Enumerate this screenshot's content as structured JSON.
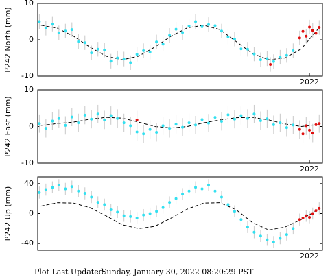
{
  "chart_data": [
    {
      "type": "scatter",
      "ylabel": "P242 North (mm)",
      "ylim": [
        -10,
        10
      ],
      "yticks": [
        -10,
        0,
        10
      ],
      "xlim": [
        2020.33,
        2022.08
      ],
      "xticks": [
        2022
      ],
      "series": [
        {
          "style": "dots",
          "color": "#33e0f0",
          "error_color": "#c8c8c8",
          "error": 2,
          "x": [
            2020.34,
            2020.38,
            2020.42,
            2020.46,
            2020.5,
            2020.54,
            2020.58,
            2020.62,
            2020.66,
            2020.7,
            2020.74,
            2020.78,
            2020.82,
            2020.86,
            2020.9,
            2020.94,
            2020.98,
            2021.02,
            2021.06,
            2021.1,
            2021.14,
            2021.18,
            2021.22,
            2021.26,
            2021.3,
            2021.34,
            2021.38,
            2021.42,
            2021.46,
            2021.5,
            2021.54,
            2021.58,
            2021.62,
            2021.66,
            2021.7,
            2021.74,
            2021.78,
            2021.82,
            2021.86,
            2021.9
          ],
          "values": [
            5.0,
            3.2,
            4.3,
            1.9,
            2.4,
            2.8,
            -0.5,
            -0.8,
            -3.6,
            -2.6,
            -2.8,
            -5.9,
            -5.0,
            -5.3,
            -6.3,
            -4.0,
            -3.0,
            -3.4,
            -0.6,
            -1.2,
            1.2,
            2.9,
            2.0,
            3.8,
            5.0,
            3.6,
            4.2,
            3.9,
            2.4,
            0.8,
            0.2,
            -2.5,
            -2.6,
            -3.9,
            -5.5,
            -5.2,
            -6.0,
            -4.8,
            -4.3,
            -3.0
          ]
        },
        {
          "style": "dots",
          "color": "#e01010",
          "error_color": "#c8c8c8",
          "error": 2,
          "x": [
            2021.76,
            2021.94,
            2021.96,
            2021.98,
            2022.0,
            2022.02,
            2022.04,
            2022.06
          ],
          "values": [
            -6.8,
            0.5,
            2.3,
            1.0,
            3.5,
            2.6,
            1.8,
            3.4
          ]
        },
        {
          "style": "dashed",
          "color": "#000000",
          "x": [
            2020.35,
            2020.45,
            2020.55,
            2020.65,
            2020.75,
            2020.85,
            2020.95,
            2021.05,
            2021.15,
            2021.25,
            2021.35,
            2021.45,
            2021.55,
            2021.65,
            2021.75,
            2021.85,
            2021.95,
            2022.05
          ],
          "values": [
            4,
            3.2,
            1,
            -2,
            -4.5,
            -5.5,
            -4.5,
            -2,
            1,
            3.3,
            4,
            2.8,
            -0.5,
            -3.8,
            -5.5,
            -5,
            -2.5,
            2.8
          ]
        }
      ]
    },
    {
      "type": "scatter",
      "ylabel": "P242 East (mm)",
      "ylim": [
        -10,
        10
      ],
      "yticks": [
        -10,
        0,
        10
      ],
      "xlim": [
        2020.33,
        2022.08
      ],
      "xticks": [
        2022
      ],
      "series": [
        {
          "style": "dots",
          "color": "#33e0f0",
          "error_color": "#c8c8c8",
          "error": 2.5,
          "x": [
            2020.34,
            2020.38,
            2020.42,
            2020.46,
            2020.5,
            2020.54,
            2020.58,
            2020.62,
            2020.66,
            2020.7,
            2020.74,
            2020.78,
            2020.82,
            2020.86,
            2020.9,
            2020.94,
            2020.98,
            2021.02,
            2021.06,
            2021.1,
            2021.14,
            2021.18,
            2021.22,
            2021.26,
            2021.3,
            2021.34,
            2021.38,
            2021.42,
            2021.46,
            2021.5,
            2021.54,
            2021.58,
            2021.62,
            2021.66,
            2021.7,
            2021.74,
            2021.78,
            2021.82,
            2021.86,
            2021.9
          ],
          "values": [
            0.8,
            -0.5,
            1.5,
            2.2,
            0.3,
            2.6,
            1.0,
            3.1,
            2.0,
            3.4,
            1.8,
            3.0,
            2.2,
            1.0,
            0.2,
            -1.5,
            -2.0,
            -0.8,
            -1.6,
            0.2,
            -0.5,
            0.6,
            -0.2,
            1.0,
            0.4,
            1.9,
            0.9,
            2.5,
            1.4,
            3.2,
            2.0,
            3.0,
            2.2,
            3.4,
            1.6,
            2.1,
            0.5,
            1.0,
            -0.3,
            0.4
          ]
        },
        {
          "style": "dots",
          "color": "#e01010",
          "error_color": "#c8c8c8",
          "error": 2.5,
          "x": [
            2020.94,
            2021.94,
            2021.96,
            2021.98,
            2022.0,
            2022.02,
            2022.04,
            2022.06
          ],
          "values": [
            1.8,
            -0.8,
            -2.0,
            0.2,
            -1.0,
            -1.8,
            0.5,
            0.8
          ]
        },
        {
          "style": "dashed",
          "color": "#000000",
          "x": [
            2020.35,
            2020.45,
            2020.55,
            2020.65,
            2020.75,
            2020.85,
            2020.95,
            2021.05,
            2021.15,
            2021.25,
            2021.35,
            2021.45,
            2021.55,
            2021.65,
            2021.75,
            2021.85,
            2021.95,
            2022.05
          ],
          "values": [
            0.3,
            0.8,
            1.2,
            2.0,
            2.5,
            2.3,
            1.2,
            0.0,
            -0.4,
            0.0,
            1.0,
            1.8,
            2.4,
            2.5,
            1.8,
            0.7,
            0.0,
            0.5
          ]
        }
      ]
    },
    {
      "type": "scatter",
      "ylabel": "P242 Up (mm)",
      "ylim": [
        -49,
        49
      ],
      "yticks": [
        -40,
        0,
        40
      ],
      "xlim": [
        2020.33,
        2022.08
      ],
      "xticks": [
        2022
      ],
      "series": [
        {
          "style": "dots",
          "color": "#33e0f0",
          "error_color": "#c8c8c8",
          "error": 8,
          "x": [
            2020.34,
            2020.38,
            2020.42,
            2020.46,
            2020.5,
            2020.54,
            2020.58,
            2020.62,
            2020.66,
            2020.7,
            2020.74,
            2020.78,
            2020.82,
            2020.86,
            2020.9,
            2020.94,
            2020.98,
            2021.02,
            2021.06,
            2021.1,
            2021.14,
            2021.18,
            2021.22,
            2021.26,
            2021.3,
            2021.34,
            2021.38,
            2021.42,
            2021.46,
            2021.5,
            2021.54,
            2021.58,
            2021.62,
            2021.66,
            2021.7,
            2021.74,
            2021.78,
            2021.82,
            2021.86,
            2021.9
          ],
          "values": [
            28,
            32,
            35,
            38,
            33,
            36,
            30,
            27,
            22,
            15,
            12,
            5,
            2,
            -3,
            -4,
            -6,
            -2,
            0,
            3,
            8,
            15,
            20,
            26,
            30,
            35,
            33,
            38,
            30,
            22,
            12,
            3,
            -8,
            -18,
            -25,
            -30,
            -35,
            -38,
            -33,
            -28,
            -20
          ]
        },
        {
          "style": "dots",
          "color": "#e01010",
          "error_color": "#c8c8c8",
          "error": 8,
          "x": [
            2021.94,
            2021.96,
            2021.98,
            2022.0,
            2022.02,
            2022.04,
            2022.06
          ],
          "values": [
            -8,
            -6,
            -3,
            -5,
            0,
            4,
            7
          ]
        },
        {
          "style": "dashed",
          "color": "#000000",
          "x": [
            2020.35,
            2020.45,
            2020.55,
            2020.65,
            2020.75,
            2020.85,
            2020.95,
            2021.05,
            2021.15,
            2021.25,
            2021.35,
            2021.45,
            2021.55,
            2021.65,
            2021.75,
            2021.85,
            2021.95,
            2022.05
          ],
          "values": [
            10,
            14.5,
            14,
            8,
            -3,
            -15,
            -20,
            -17,
            -6,
            6,
            14,
            14.5,
            5,
            -12,
            -22,
            -18,
            -8,
            5
          ]
        }
      ]
    }
  ],
  "footer": {
    "label": "Plot Last Updated:",
    "text": "Sunday, January 30, 2022 08:20:29 PST"
  }
}
